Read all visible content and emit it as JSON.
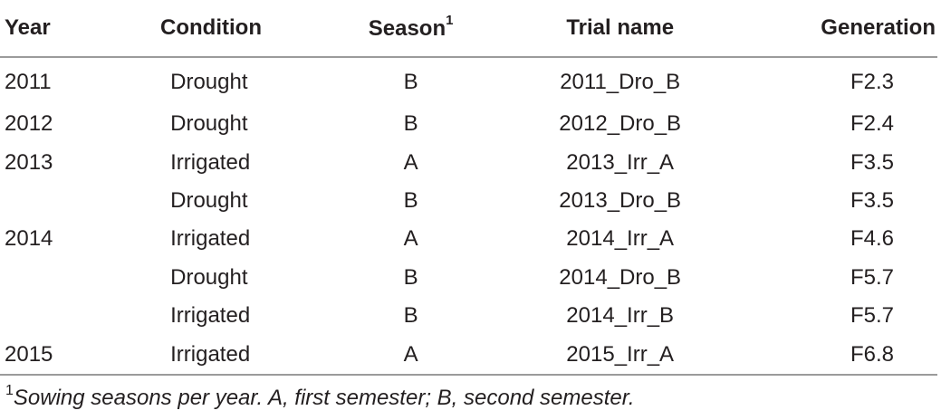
{
  "table": {
    "headers": {
      "year": "Year",
      "condition": "Condition",
      "season": "Season",
      "season_sup": "1",
      "trial_name": "Trial name",
      "generation": "Generation"
    },
    "rows": [
      {
        "year": "2011",
        "condition": "Drought",
        "season": "B",
        "trial_name": "2011_Dro_B",
        "generation": "F2.3"
      },
      {
        "year": "2012",
        "condition": "Drought",
        "season": "B",
        "trial_name": "2012_Dro_B",
        "generation": "F2.4"
      },
      {
        "year": "2013",
        "condition": "Irrigated",
        "season": "A",
        "trial_name": "2013_Irr_A",
        "generation": "F3.5"
      },
      {
        "year": "",
        "condition": "Drought",
        "season": "B",
        "trial_name": "2013_Dro_B",
        "generation": "F3.5"
      },
      {
        "year": "2014",
        "condition": "Irrigated",
        "season": "A",
        "trial_name": "2014_Irr_A",
        "generation": "F4.6"
      },
      {
        "year": "",
        "condition": "Drought",
        "season": "B",
        "trial_name": "2014_Dro_B",
        "generation": "F5.7"
      },
      {
        "year": "",
        "condition": "Irrigated",
        "season": "B",
        "trial_name": "2014_Irr_B",
        "generation": "F5.7"
      },
      {
        "year": "2015",
        "condition": "Irrigated",
        "season": "A",
        "trial_name": "2015_Irr_A",
        "generation": "F6.8"
      }
    ]
  },
  "footnote": {
    "marker": "1",
    "text": "Sowing seasons per year. A, first semester; B, second semester."
  }
}
